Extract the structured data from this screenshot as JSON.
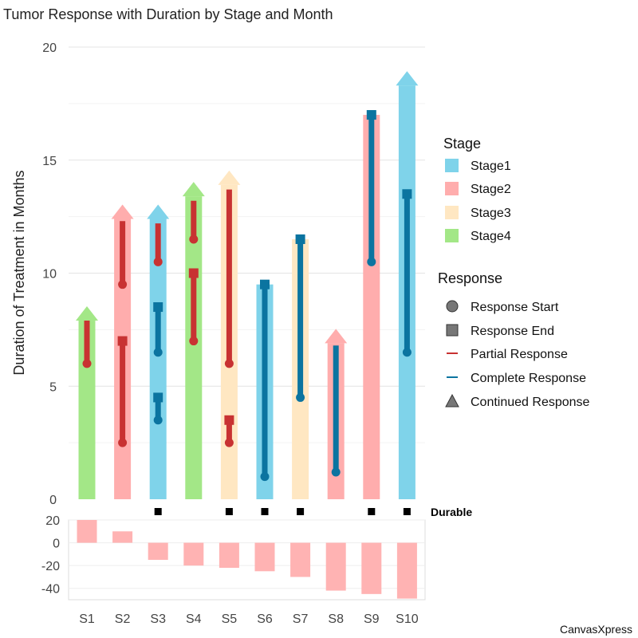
{
  "chart_data": {
    "type": "bar",
    "title": "Tumor Response with Duration by Stage and Month",
    "ylabel": "Duration of Treatment in Months",
    "ylim": [
      0,
      20
    ],
    "yticks": [
      0,
      5,
      10,
      15,
      20
    ],
    "categories": [
      "S1",
      "S2",
      "S3",
      "S4",
      "S5",
      "S6",
      "S7",
      "S8",
      "S9",
      "S10"
    ],
    "durations": [
      7.9,
      12.4,
      12.4,
      13.4,
      13.9,
      9.5,
      11.5,
      6.9,
      17.0,
      18.3
    ],
    "stages": [
      "Stage4",
      "Stage2",
      "Stage1",
      "Stage4",
      "Stage3",
      "Stage1",
      "Stage3",
      "Stage2",
      "Stage2",
      "Stage1"
    ],
    "continued": [
      true,
      true,
      true,
      true,
      true,
      false,
      false,
      true,
      false,
      true
    ],
    "responses": [
      {
        "sample": "S1",
        "start": 6.0,
        "end": 7.9,
        "type": "partial",
        "end_marker": "none"
      },
      {
        "sample": "S2",
        "start": 9.5,
        "end": 12.3,
        "type": "partial",
        "end_marker": "none"
      },
      {
        "sample": "S2",
        "start": 2.5,
        "end": 7.0,
        "type": "partial",
        "end_marker": "square"
      },
      {
        "sample": "S3",
        "start": 10.5,
        "end": 12.2,
        "type": "partial",
        "end_marker": "none"
      },
      {
        "sample": "S3",
        "start": 6.5,
        "end": 8.5,
        "type": "complete",
        "end_marker": "square"
      },
      {
        "sample": "S3",
        "start": 3.5,
        "end": 4.5,
        "type": "complete",
        "end_marker": "square"
      },
      {
        "sample": "S4",
        "start": 11.5,
        "end": 13.2,
        "type": "partial",
        "end_marker": "none"
      },
      {
        "sample": "S4",
        "start": 7.0,
        "end": 10.0,
        "type": "partial",
        "end_marker": "square"
      },
      {
        "sample": "S5",
        "start": 6.0,
        "end": 13.7,
        "type": "partial",
        "end_marker": "none"
      },
      {
        "sample": "S5",
        "start": 2.5,
        "end": 3.5,
        "type": "partial",
        "end_marker": "square"
      },
      {
        "sample": "S6",
        "start": 1.0,
        "end": 9.5,
        "type": "complete",
        "end_marker": "square"
      },
      {
        "sample": "S7",
        "start": 4.5,
        "end": 11.5,
        "type": "complete",
        "end_marker": "square"
      },
      {
        "sample": "S8",
        "start": 1.2,
        "end": 6.8,
        "type": "complete",
        "end_marker": "none"
      },
      {
        "sample": "S9",
        "start": 10.5,
        "end": 17.0,
        "type": "complete",
        "end_marker": "square"
      },
      {
        "sample": "S10",
        "start": 6.5,
        "end": 13.5,
        "type": "complete",
        "end_marker": "square"
      }
    ],
    "durable": {
      "label": "Durable",
      "samples": [
        "S3",
        "S5",
        "S6",
        "S7",
        "S9",
        "S10"
      ]
    },
    "waterfall": {
      "ylim": [
        -50,
        20
      ],
      "yticks": [
        20,
        0,
        -20,
        -40
      ],
      "values": [
        20,
        10,
        -15,
        -20,
        -22,
        -25,
        -30,
        -42,
        -45,
        -49
      ]
    },
    "legend": {
      "stage_title": "Stage",
      "stages": [
        {
          "name": "Stage1",
          "color": "#7fd3ea"
        },
        {
          "name": "Stage2",
          "color": "#ffadad"
        },
        {
          "name": "Stage3",
          "color": "#ffe7c2"
        },
        {
          "name": "Stage4",
          "color": "#a3e787"
        }
      ],
      "response_title": "Response",
      "response_items": [
        {
          "label": "Response Start",
          "symbol": "circle"
        },
        {
          "label": "Response End",
          "symbol": "square"
        },
        {
          "label": "Partial Response",
          "symbol": "line-partial"
        },
        {
          "label": "Complete Response",
          "symbol": "line-complete"
        },
        {
          "label": "Continued Response",
          "symbol": "triangle"
        }
      ]
    },
    "colors": {
      "partial": "#c83232",
      "complete": "#0b74a0",
      "waterfall": "#ffb3b3",
      "grid": "#e4e4e4"
    },
    "credit": "CanvasXpress"
  }
}
